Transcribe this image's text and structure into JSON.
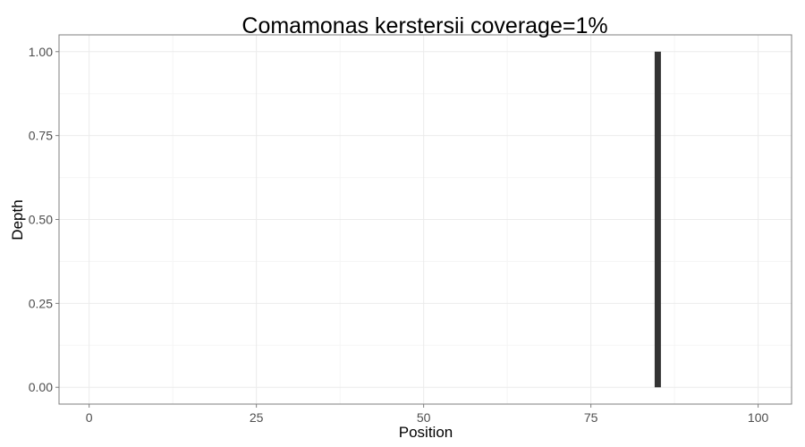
{
  "chart_data": {
    "type": "bar",
    "title": "Comamonas kerstersii coverage=1%",
    "xlabel": "Position",
    "ylabel": "Depth",
    "xlim": [
      -4.5,
      105
    ],
    "ylim": [
      -0.05,
      1.05
    ],
    "x_ticks": [
      0,
      25,
      50,
      75,
      100
    ],
    "x_tick_labels": [
      "0",
      "25",
      "50",
      "75",
      "100"
    ],
    "y_ticks": [
      0,
      0.25,
      0.5,
      0.75,
      1.0
    ],
    "y_tick_labels": [
      "0.00",
      "0.25",
      "0.50",
      "0.75",
      "1.00"
    ],
    "grid": true,
    "bar_color": "#333333",
    "points": [
      {
        "x": 85,
        "y": 1.0
      }
    ]
  }
}
